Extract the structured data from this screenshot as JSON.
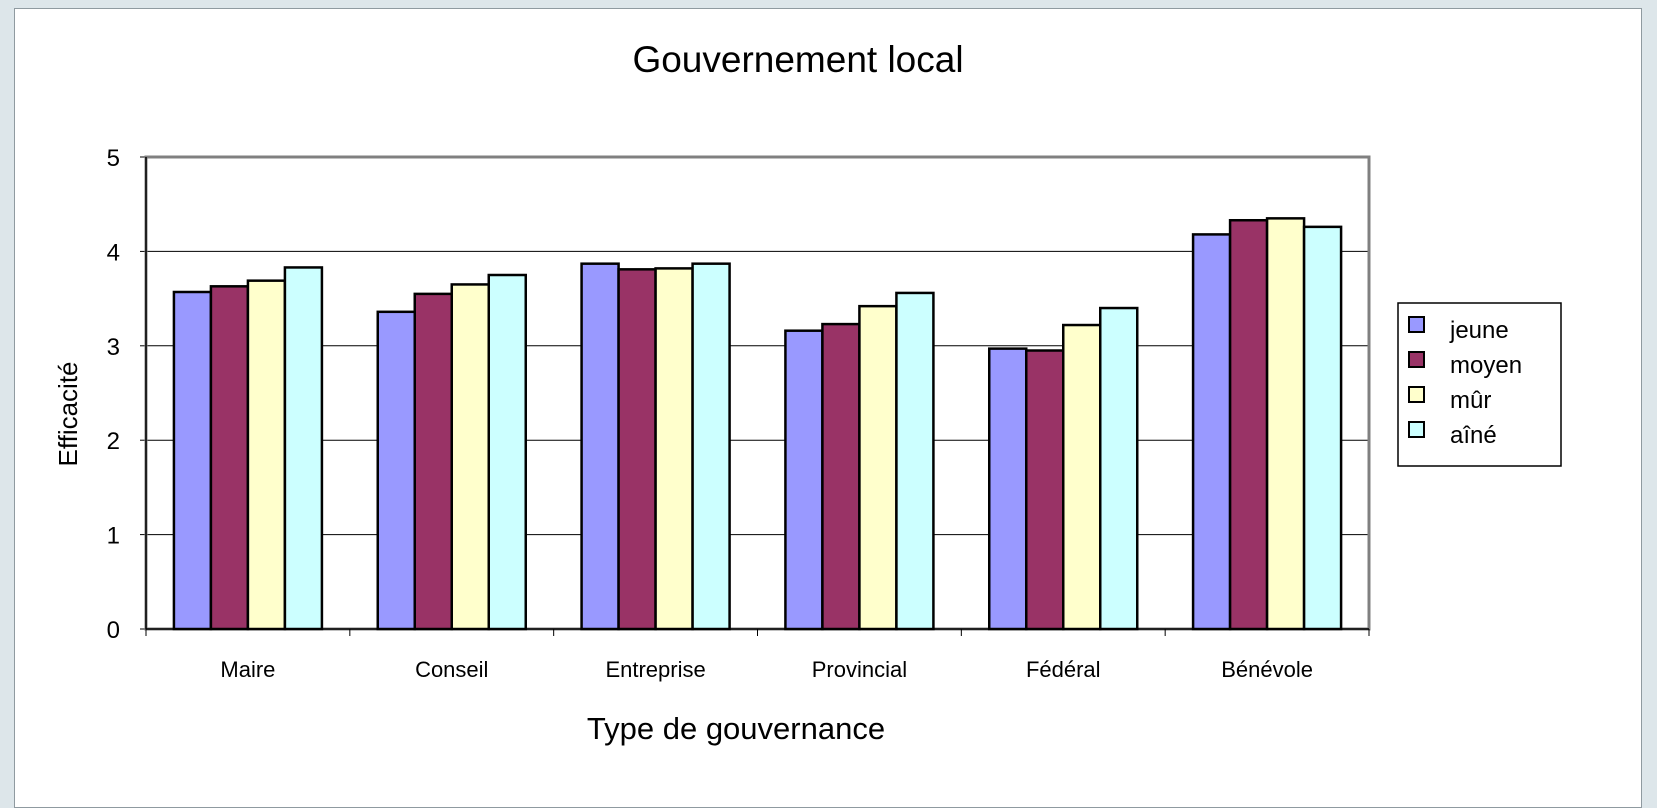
{
  "chart_data": {
    "type": "bar",
    "title": "Gouvernement local",
    "xlabel": "Type de gouvernance",
    "ylabel": "Efficacité",
    "categories": [
      "Maire",
      "Conseil",
      "Entreprise",
      "Provincial",
      "Fédéral",
      "Bénévole"
    ],
    "ylim": [
      0,
      5
    ],
    "yticks": [
      "0",
      "1",
      "2",
      "3",
      "4",
      "5"
    ],
    "grid": true,
    "legend_position": "right",
    "series": [
      {
        "name": "jeune",
        "color": "#9999ff",
        "values": [
          3.57,
          3.36,
          3.87,
          3.16,
          2.97,
          4.18
        ]
      },
      {
        "name": "moyen",
        "color": "#993366",
        "values": [
          3.63,
          3.55,
          3.81,
          3.23,
          2.95,
          4.33
        ]
      },
      {
        "name": "mûr",
        "color": "#ffffcc",
        "values": [
          3.69,
          3.65,
          3.82,
          3.42,
          3.22,
          4.35
        ]
      },
      {
        "name": "aîné",
        "color": "#ccffff",
        "values": [
          3.83,
          3.75,
          3.87,
          3.56,
          3.4,
          4.26
        ]
      }
    ]
  }
}
